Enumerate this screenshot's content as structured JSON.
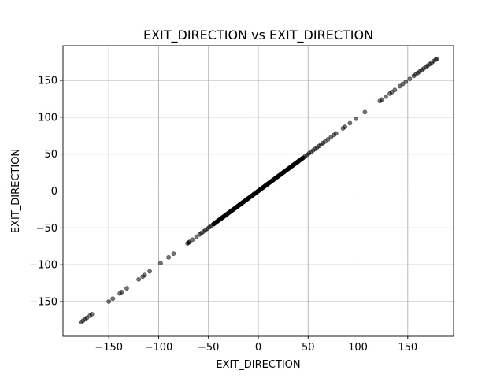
{
  "chart_data": {
    "type": "scatter",
    "title": "EXIT_DIRECTION vs EXIT_DIRECTION",
    "xlabel": "EXIT_DIRECTION",
    "ylabel": "EXIT_DIRECTION",
    "xlim": [
      -196,
      196
    ],
    "ylim": [
      -197,
      197
    ],
    "grid": true,
    "xticks": [
      -150,
      -100,
      -50,
      0,
      50,
      100,
      150
    ],
    "yticks": [
      -150,
      -100,
      -50,
      0,
      50,
      100,
      150
    ],
    "xtick_labels": [
      "−150",
      "−100",
      "−50",
      "0",
      "50",
      "100",
      "150"
    ],
    "ytick_labels": [
      "−150",
      "−100",
      "−50",
      "0",
      "50",
      "100",
      "150"
    ],
    "point_color": "#000000",
    "dense_range": [
      -45,
      45
    ],
    "series": [
      {
        "x": [
          -178,
          -176,
          -174,
          -172,
          -169,
          -167,
          -150,
          -146,
          -139,
          -137,
          -132,
          -120,
          -116,
          -114,
          -109,
          -98,
          -90,
          -85,
          -71,
          -70,
          -69,
          -66,
          -62,
          -59,
          -57,
          -55,
          -53,
          -51,
          -49,
          -47,
          -45,
          -40,
          -35,
          -30,
          -25,
          -20,
          -15,
          -10,
          -5,
          0,
          5,
          10,
          15,
          20,
          25,
          30,
          35,
          40,
          45,
          47,
          49,
          51,
          53,
          55,
          57,
          59,
          61,
          63,
          65,
          67,
          70,
          73,
          76,
          78,
          85,
          87,
          92,
          98,
          107,
          122,
          124,
          128,
          132,
          134,
          137,
          142,
          145,
          148,
          152,
          156,
          158,
          160,
          162,
          164,
          166,
          168,
          170,
          172,
          174,
          176,
          178,
          179
        ],
        "y": [
          -178,
          -176,
          -174,
          -172,
          -169,
          -167,
          -150,
          -146,
          -139,
          -137,
          -132,
          -120,
          -116,
          -114,
          -109,
          -98,
          -90,
          -85,
          -71,
          -70,
          -69,
          -66,
          -62,
          -59,
          -57,
          -55,
          -53,
          -51,
          -49,
          -47,
          -45,
          -40,
          -35,
          -30,
          -25,
          -20,
          -15,
          -10,
          -5,
          0,
          5,
          10,
          15,
          20,
          25,
          30,
          35,
          40,
          45,
          47,
          49,
          51,
          53,
          55,
          57,
          59,
          61,
          63,
          65,
          67,
          70,
          73,
          76,
          78,
          85,
          87,
          92,
          98,
          107,
          122,
          124,
          128,
          132,
          134,
          137,
          142,
          145,
          148,
          152,
          156,
          158,
          160,
          162,
          164,
          166,
          168,
          170,
          172,
          174,
          176,
          178,
          179
        ]
      }
    ]
  }
}
